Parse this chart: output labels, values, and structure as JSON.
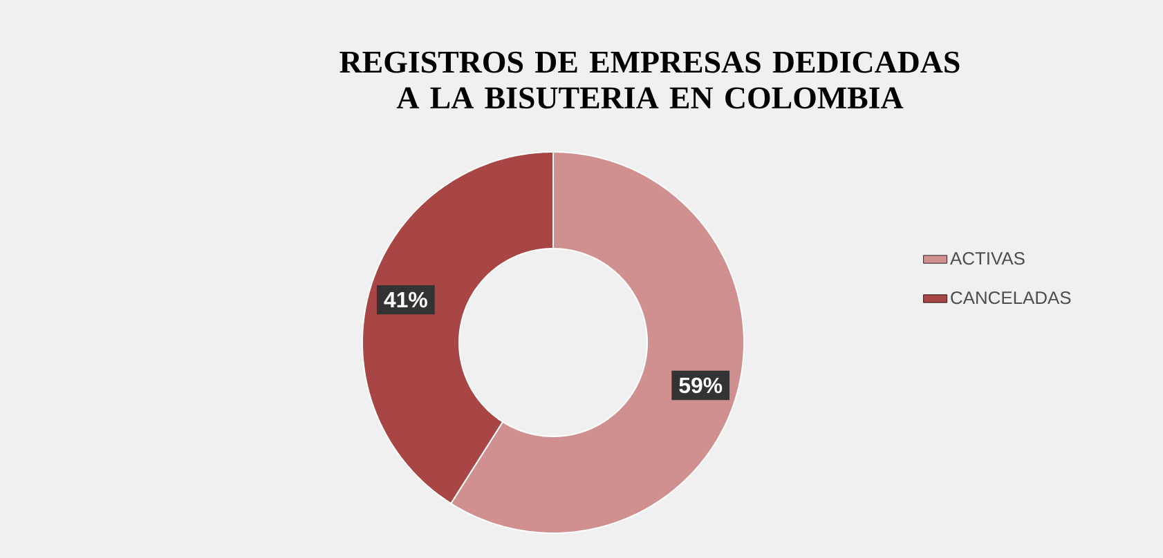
{
  "chart_data": {
    "type": "donut",
    "title": "REGISTROS DE EMPRESAS DEDICADAS A LA BISUTERIA EN COLOMBIA",
    "categories": [
      "ACTIVAS",
      "CANCELADAS"
    ],
    "values": [
      59,
      41
    ],
    "colors": [
      "#d09090",
      "#a84545"
    ],
    "value_labels": [
      "59%",
      "41%"
    ],
    "legend": "right"
  }
}
